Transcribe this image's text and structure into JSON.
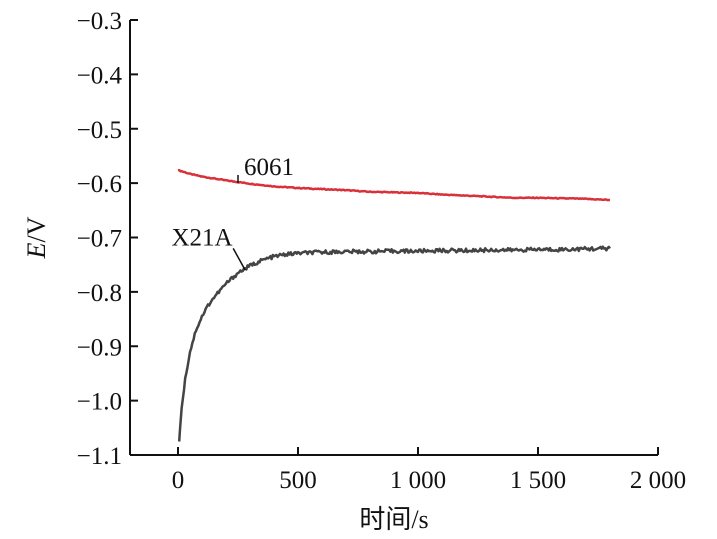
{
  "chart_data": {
    "type": "line",
    "title": "",
    "xlabel": "时间/s",
    "ylabel_italic": "E",
    "ylabel_rest": "/V",
    "xlim": [
      -200,
      2000
    ],
    "ylim": [
      -1.1,
      -0.3
    ],
    "x_ticks": [
      0,
      500,
      1000,
      1500,
      2000
    ],
    "x_tick_labels": [
      "0",
      "500",
      "1 000",
      "1 500",
      "2 000"
    ],
    "y_ticks": [
      -0.3,
      -0.4,
      -0.5,
      -0.6,
      -0.7,
      -0.8,
      -0.9,
      -1.0,
      -1.1
    ],
    "y_tick_labels": [
      "−0.3",
      "−0.4",
      "−0.5",
      "−0.6",
      "−0.7",
      "−0.8",
      "−0.9",
      "−1.0",
      "−1.1"
    ],
    "grid": false,
    "series": [
      {
        "name": "6061",
        "color": "#d9313a",
        "label_x": 150,
        "label_y": -0.57,
        "x": [
          0,
          50,
          100,
          200,
          300,
          400,
          500,
          600,
          700,
          800,
          900,
          1000,
          1100,
          1200,
          1300,
          1400,
          1500,
          1600,
          1700,
          1800
        ],
        "y": [
          -0.576,
          -0.583,
          -0.588,
          -0.595,
          -0.601,
          -0.606,
          -0.609,
          -0.611,
          -0.613,
          -0.616,
          -0.617,
          -0.618,
          -0.621,
          -0.623,
          -0.625,
          -0.627,
          -0.627,
          -0.628,
          -0.629,
          -0.631
        ]
      },
      {
        "name": "X21A",
        "color": "#444444",
        "label_x": 100,
        "label_y": -0.7,
        "x": [
          5,
          10,
          20,
          30,
          50,
          75,
          100,
          125,
          150,
          200,
          250,
          300,
          350,
          400,
          450,
          500,
          600,
          700,
          800,
          900,
          1000,
          1100,
          1200,
          1300,
          1400,
          1500,
          1600,
          1700,
          1800
        ],
        "y": [
          -1.075,
          -1.04,
          -0.995,
          -0.96,
          -0.91,
          -0.87,
          -0.845,
          -0.825,
          -0.81,
          -0.785,
          -0.765,
          -0.752,
          -0.742,
          -0.735,
          -0.731,
          -0.729,
          -0.727,
          -0.726,
          -0.726,
          -0.725,
          -0.725,
          -0.724,
          -0.724,
          -0.723,
          -0.723,
          -0.722,
          -0.722,
          -0.721,
          -0.72
        ]
      }
    ]
  }
}
